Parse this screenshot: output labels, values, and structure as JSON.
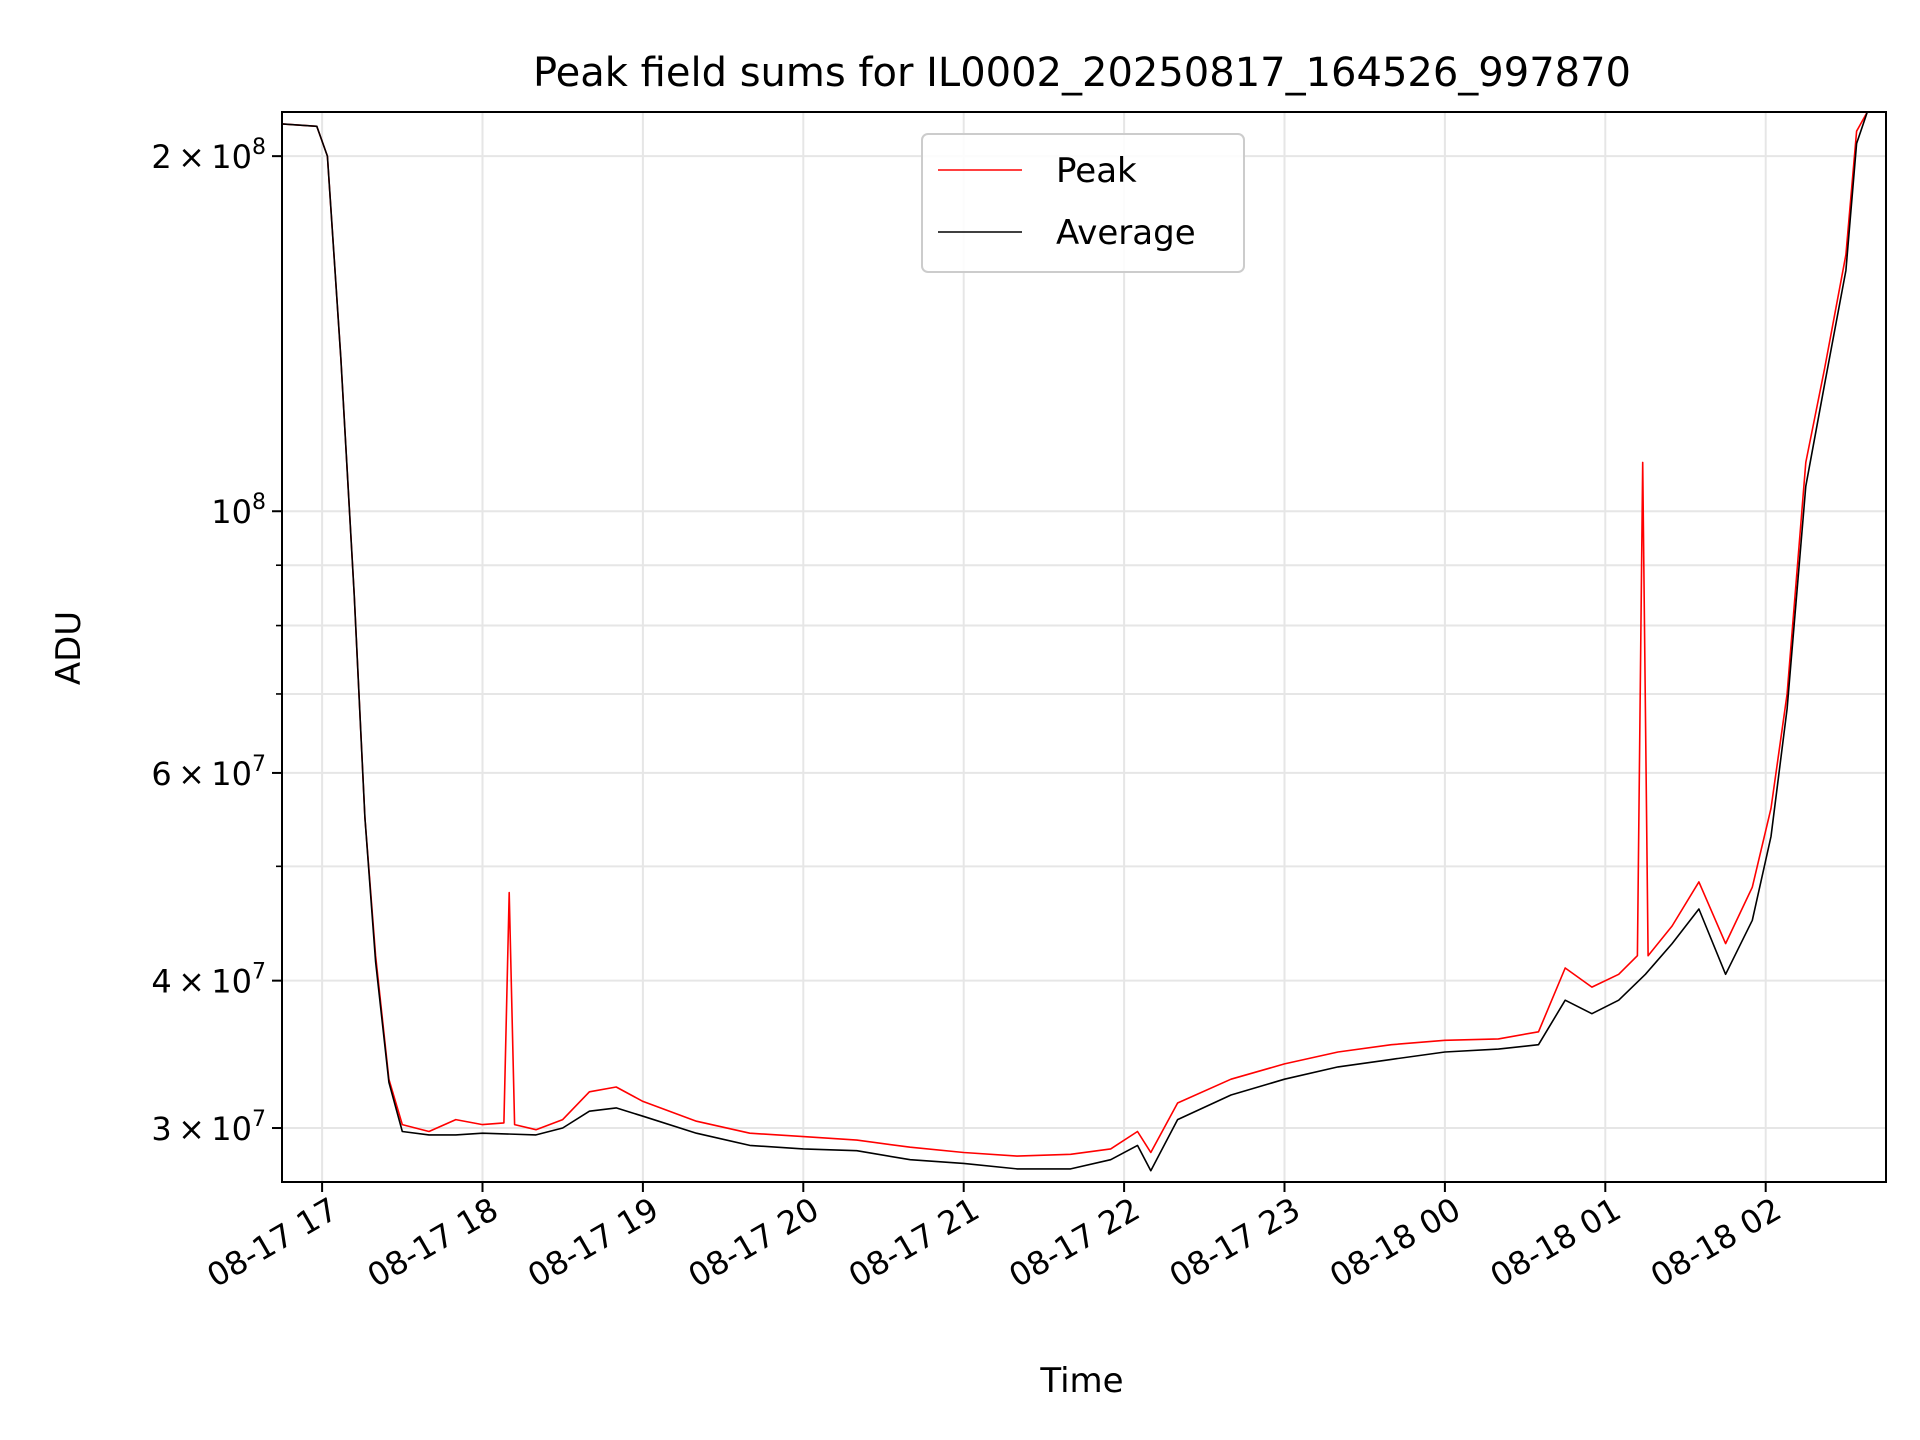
{
  "chart_data": {
    "type": "line",
    "title": "Peak field sums for IL0002_20250817_164526_997870",
    "xlabel": "Time",
    "ylabel": "ADU",
    "yscale": "log",
    "xlim": [
      "2025-08-17 16:45",
      "2025-08-18 02:45"
    ],
    "ylim": [
      27000000,
      218000000
    ],
    "grid": true,
    "legend": "top-center",
    "x_ticks": [
      {
        "value": "2025-08-17 17:00",
        "label": "08-17 17"
      },
      {
        "value": "2025-08-17 18:00",
        "label": "08-17 18"
      },
      {
        "value": "2025-08-17 19:00",
        "label": "08-17 19"
      },
      {
        "value": "2025-08-17 20:00",
        "label": "08-17 20"
      },
      {
        "value": "2025-08-17 21:00",
        "label": "08-17 21"
      },
      {
        "value": "2025-08-17 22:00",
        "label": "08-17 22"
      },
      {
        "value": "2025-08-17 23:00",
        "label": "08-17 23"
      },
      {
        "value": "2025-08-18 00:00",
        "label": "08-18 00"
      },
      {
        "value": "2025-08-18 01:00",
        "label": "08-18 01"
      },
      {
        "value": "2025-08-18 02:00",
        "label": "08-18 02"
      }
    ],
    "y_ticks": [
      {
        "value": 30000000,
        "mantissa": "3",
        "exponent": "7"
      },
      {
        "value": 40000000,
        "mantissa": "4",
        "exponent": "7"
      },
      {
        "value": 60000000,
        "mantissa": "6",
        "exponent": "7"
      },
      {
        "value": 100000000,
        "mantissa": "",
        "exponent": "8"
      },
      {
        "value": 200000000,
        "mantissa": "2",
        "exponent": "8"
      }
    ],
    "y_minor_ticks": [
      50000000,
      70000000,
      80000000,
      90000000
    ],
    "series": [
      {
        "name": "Peak",
        "color": "#ff0000",
        "x": [
          "2025-08-17 16:45",
          "2025-08-17 16:58",
          "2025-08-17 17:02",
          "2025-08-17 17:07",
          "2025-08-17 17:12",
          "2025-08-17 17:16",
          "2025-08-17 17:20",
          "2025-08-17 17:25",
          "2025-08-17 17:30",
          "2025-08-17 17:40",
          "2025-08-17 17:50",
          "2025-08-17 18:00",
          "2025-08-17 18:08",
          "2025-08-17 18:10",
          "2025-08-17 18:12",
          "2025-08-17 18:20",
          "2025-08-17 18:30",
          "2025-08-17 18:40",
          "2025-08-17 18:50",
          "2025-08-17 19:00",
          "2025-08-17 19:20",
          "2025-08-17 19:40",
          "2025-08-17 20:00",
          "2025-08-17 20:20",
          "2025-08-17 20:40",
          "2025-08-17 21:00",
          "2025-08-17 21:20",
          "2025-08-17 21:40",
          "2025-08-17 21:55",
          "2025-08-17 22:05",
          "2025-08-17 22:10",
          "2025-08-17 22:20",
          "2025-08-17 22:40",
          "2025-08-17 23:00",
          "2025-08-17 23:20",
          "2025-08-17 23:40",
          "2025-08-18 00:00",
          "2025-08-18 00:20",
          "2025-08-18 00:35",
          "2025-08-18 00:45",
          "2025-08-18 00:55",
          "2025-08-18 01:05",
          "2025-08-18 01:12",
          "2025-08-18 01:14",
          "2025-08-18 01:16",
          "2025-08-18 01:25",
          "2025-08-18 01:35",
          "2025-08-18 01:45",
          "2025-08-18 01:55",
          "2025-08-18 02:02",
          "2025-08-18 02:08",
          "2025-08-18 02:15",
          "2025-08-18 02:22",
          "2025-08-18 02:30",
          "2025-08-18 02:34",
          "2025-08-18 02:38"
        ],
        "y": [
          213000000,
          212000000,
          200000000,
          135000000,
          85000000,
          55000000,
          42000000,
          33000000,
          30200000,
          29800000,
          30500000,
          30200000,
          30300000,
          47500000,
          30200000,
          29900000,
          30500000,
          32200000,
          32500000,
          31600000,
          30400000,
          29700000,
          29500000,
          29300000,
          28900000,
          28600000,
          28400000,
          28500000,
          28800000,
          29800000,
          28600000,
          31500000,
          33000000,
          34000000,
          34800000,
          35300000,
          35600000,
          35700000,
          36200000,
          41000000,
          39500000,
          40500000,
          42000000,
          110000000,
          42000000,
          44500000,
          48500000,
          43000000,
          48000000,
          56000000,
          70000000,
          110000000,
          132000000,
          165000000,
          210000000,
          218000000
        ]
      },
      {
        "name": "Average",
        "color": "#000000",
        "x": [
          "2025-08-17 16:45",
          "2025-08-17 16:58",
          "2025-08-17 17:02",
          "2025-08-17 17:07",
          "2025-08-17 17:12",
          "2025-08-17 17:16",
          "2025-08-17 17:20",
          "2025-08-17 17:25",
          "2025-08-17 17:30",
          "2025-08-17 17:40",
          "2025-08-17 17:50",
          "2025-08-17 18:00",
          "2025-08-17 18:20",
          "2025-08-17 18:30",
          "2025-08-17 18:40",
          "2025-08-17 18:50",
          "2025-08-17 19:00",
          "2025-08-17 19:20",
          "2025-08-17 19:40",
          "2025-08-17 20:00",
          "2025-08-17 20:20",
          "2025-08-17 20:40",
          "2025-08-17 21:00",
          "2025-08-17 21:20",
          "2025-08-17 21:40",
          "2025-08-17 21:55",
          "2025-08-17 22:05",
          "2025-08-17 22:10",
          "2025-08-17 22:20",
          "2025-08-17 22:40",
          "2025-08-17 23:00",
          "2025-08-17 23:20",
          "2025-08-17 23:40",
          "2025-08-18 00:00",
          "2025-08-18 00:20",
          "2025-08-18 00:35",
          "2025-08-18 00:45",
          "2025-08-18 00:55",
          "2025-08-18 01:05",
          "2025-08-18 01:15",
          "2025-08-18 01:25",
          "2025-08-18 01:35",
          "2025-08-18 01:45",
          "2025-08-18 01:55",
          "2025-08-18 02:02",
          "2025-08-18 02:08",
          "2025-08-18 02:15",
          "2025-08-18 02:22",
          "2025-08-18 02:30",
          "2025-08-18 02:34",
          "2025-08-18 02:38"
        ],
        "y": [
          213000000,
          212000000,
          200000000,
          135000000,
          85000000,
          55000000,
          41500000,
          32800000,
          29800000,
          29600000,
          29600000,
          29700000,
          29600000,
          30000000,
          31000000,
          31200000,
          30700000,
          29700000,
          29000000,
          28800000,
          28700000,
          28200000,
          28000000,
          27700000,
          27700000,
          28200000,
          29000000,
          27600000,
          30500000,
          32000000,
          33000000,
          33800000,
          34300000,
          34800000,
          35000000,
          35300000,
          38500000,
          37500000,
          38500000,
          40500000,
          43000000,
          46000000,
          40500000,
          45000000,
          53000000,
          68000000,
          105000000,
          128000000,
          160000000,
          205000000,
          218000000
        ]
      }
    ]
  }
}
